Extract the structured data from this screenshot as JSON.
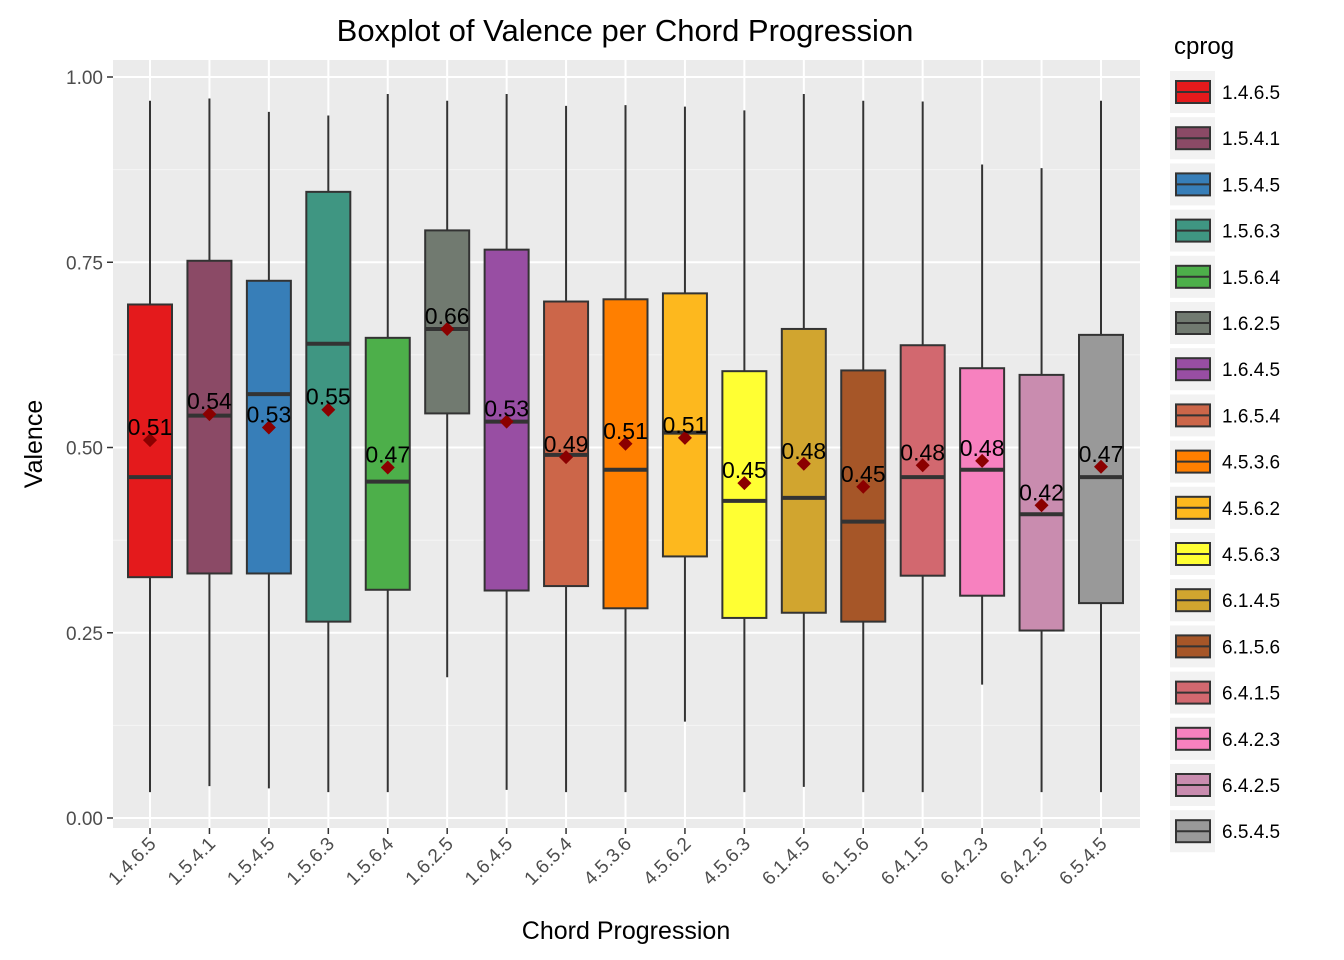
{
  "chart_data": {
    "type": "box",
    "title": "Boxplot of Valence per Chord Progression",
    "xlabel": "Chord Progression",
    "ylabel": "Valence",
    "ylim": [
      0,
      1
    ],
    "yticks": [
      "0.00",
      "0.25",
      "0.50",
      "0.75",
      "1.00"
    ],
    "grid": true,
    "legend": {
      "title": "cprog",
      "position": "right"
    },
    "categories": [
      "1.4.6.5",
      "1.5.4.1",
      "1.5.4.5",
      "1.5.6.3",
      "1.5.6.4",
      "1.6.2.5",
      "1.6.4.5",
      "1.6.5.4",
      "4.5.3.6",
      "4.5.6.2",
      "4.5.6.3",
      "6.1.4.5",
      "6.1.5.6",
      "6.4.1.5",
      "6.4.2.3",
      "6.4.2.5",
      "6.5.4.5"
    ],
    "colors": [
      "#e41a1c",
      "#8b4a66",
      "#377eb8",
      "#3f9682",
      "#4daf4a",
      "#717a70",
      "#984ea3",
      "#cc6649",
      "#ff7f00",
      "#fdb81e",
      "#ffff33",
      "#d1a52f",
      "#a65628",
      "#d2686f",
      "#f781bf",
      "#c98caf",
      "#999999"
    ],
    "mean_marker_color": "#8b0000",
    "series": [
      {
        "cprog": "1.4.6.5",
        "min": 0.035,
        "q1": 0.325,
        "median": 0.46,
        "q3": 0.693,
        "max": 0.968,
        "mean": 0.51,
        "mean_label": "0.51"
      },
      {
        "cprog": "1.5.4.1",
        "min": 0.043,
        "q1": 0.33,
        "median": 0.543,
        "q3": 0.752,
        "max": 0.971,
        "mean": 0.545,
        "mean_label": "0.54"
      },
      {
        "cprog": "1.5.4.5",
        "min": 0.04,
        "q1": 0.33,
        "median": 0.572,
        "q3": 0.725,
        "max": 0.953,
        "mean": 0.527,
        "mean_label": "0.53"
      },
      {
        "cprog": "1.5.6.3",
        "min": 0.035,
        "q1": 0.265,
        "median": 0.64,
        "q3": 0.845,
        "max": 0.948,
        "mean": 0.551,
        "mean_label": "0.55"
      },
      {
        "cprog": "1.5.6.4",
        "min": 0.035,
        "q1": 0.308,
        "median": 0.454,
        "q3": 0.648,
        "max": 0.977,
        "mean": 0.473,
        "mean_label": "0.47"
      },
      {
        "cprog": "1.6.2.5",
        "min": 0.19,
        "q1": 0.546,
        "median": 0.66,
        "q3": 0.793,
        "max": 0.968,
        "mean": 0.66,
        "mean_label": "0.66"
      },
      {
        "cprog": "1.6.4.5",
        "min": 0.038,
        "q1": 0.307,
        "median": 0.535,
        "q3": 0.767,
        "max": 0.977,
        "mean": 0.535,
        "mean_label": "0.53"
      },
      {
        "cprog": "1.6.5.4",
        "min": 0.035,
        "q1": 0.313,
        "median": 0.49,
        "q3": 0.697,
        "max": 0.961,
        "mean": 0.487,
        "mean_label": "0.49"
      },
      {
        "cprog": "4.5.3.6",
        "min": 0.035,
        "q1": 0.283,
        "median": 0.47,
        "q3": 0.7,
        "max": 0.962,
        "mean": 0.505,
        "mean_label": "0.51"
      },
      {
        "cprog": "4.5.6.2",
        "min": 0.13,
        "q1": 0.353,
        "median": 0.52,
        "q3": 0.708,
        "max": 0.96,
        "mean": 0.513,
        "mean_label": "0.51"
      },
      {
        "cprog": "4.5.6.3",
        "min": 0.035,
        "q1": 0.27,
        "median": 0.428,
        "q3": 0.603,
        "max": 0.955,
        "mean": 0.452,
        "mean_label": "0.45"
      },
      {
        "cprog": "6.1.4.5",
        "min": 0.042,
        "q1": 0.277,
        "median": 0.432,
        "q3": 0.66,
        "max": 0.977,
        "mean": 0.478,
        "mean_label": "0.48"
      },
      {
        "cprog": "6.1.5.6",
        "min": 0.035,
        "q1": 0.265,
        "median": 0.4,
        "q3": 0.604,
        "max": 0.968,
        "mean": 0.447,
        "mean_label": "0.45"
      },
      {
        "cprog": "6.4.1.5",
        "min": 0.035,
        "q1": 0.327,
        "median": 0.46,
        "q3": 0.638,
        "max": 0.967,
        "mean": 0.476,
        "mean_label": "0.48"
      },
      {
        "cprog": "6.4.2.3",
        "min": 0.18,
        "q1": 0.3,
        "median": 0.47,
        "q3": 0.607,
        "max": 0.882,
        "mean": 0.482,
        "mean_label": "0.48"
      },
      {
        "cprog": "6.4.2.5",
        "min": 0.035,
        "q1": 0.253,
        "median": 0.41,
        "q3": 0.598,
        "max": 0.877,
        "mean": 0.422,
        "mean_label": "0.42"
      },
      {
        "cprog": "6.5.4.5",
        "min": 0.035,
        "q1": 0.29,
        "median": 0.46,
        "q3": 0.652,
        "max": 0.968,
        "mean": 0.474,
        "mean_label": "0.47"
      }
    ]
  }
}
